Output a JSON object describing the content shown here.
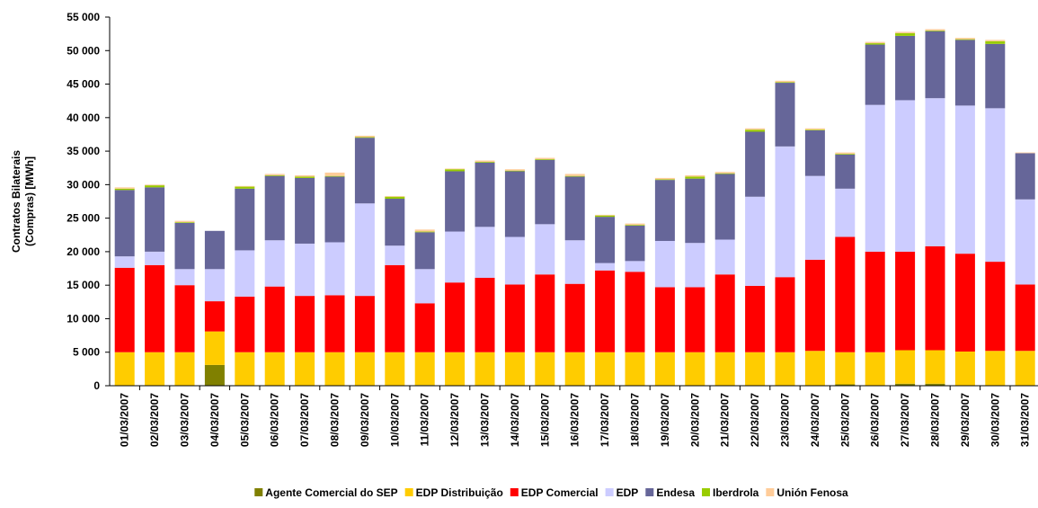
{
  "chart_data": {
    "type": "stacked_bar",
    "ylabel": [
      "Contratos Bilaterais",
      "(Compras) [MWh]"
    ],
    "categories": [
      "01/03/2007",
      "02/03/2007",
      "03/03/2007",
      "04/03/2007",
      "05/03/2007",
      "06/03/2007",
      "07/03/2007",
      "08/03/2007",
      "09/03/2007",
      "10/03/2007",
      "11/03/2007",
      "12/03/2007",
      "13/03/2007",
      "14/03/2007",
      "15/03/2007",
      "16/03/2007",
      "17/03/2007",
      "18/03/2007",
      "19/03/2007",
      "20/03/2007",
      "21/03/2007",
      "22/03/2007",
      "23/03/2007",
      "24/03/2007",
      "25/03/2007",
      "26/03/2007",
      "27/03/2007",
      "28/03/2007",
      "29/03/2007",
      "30/03/2007",
      "31/03/2007"
    ],
    "series": [
      {
        "name": "Agente Comercial do SEP",
        "color": "#808000",
        "values": [
          0,
          0,
          0,
          3100,
          0,
          0,
          0,
          0,
          0,
          0,
          100,
          0,
          0,
          0,
          0,
          0,
          0,
          0,
          0,
          0,
          0,
          0,
          0,
          0,
          200,
          0,
          300,
          300,
          0,
          0,
          0
        ]
      },
      {
        "name": "EDP Distribuição",
        "color": "#ffcc00",
        "values": [
          5000,
          5000,
          5000,
          5000,
          5000,
          5000,
          5000,
          5000,
          5000,
          5000,
          4900,
          5000,
          5000,
          5000,
          5000,
          5000,
          5000,
          5000,
          5000,
          5000,
          5000,
          5000,
          5000,
          5200,
          4800,
          5000,
          5000,
          5000,
          5100,
          5200,
          5200
        ]
      },
      {
        "name": "EDP Comercial",
        "color": "#ff0000",
        "values": [
          12600,
          13000,
          10000,
          4500,
          8300,
          9800,
          8400,
          8500,
          8400,
          13000,
          7300,
          10400,
          11100,
          10100,
          11600,
          10200,
          12200,
          12000,
          9700,
          9700,
          11600,
          9900,
          11200,
          13600,
          17200,
          15000,
          14700,
          15500,
          14600,
          13300,
          9900
        ]
      },
      {
        "name": "EDP",
        "color": "#ccccff",
        "values": [
          1700,
          2000,
          2400,
          4800,
          6900,
          6900,
          7800,
          7900,
          13800,
          2900,
          5100,
          7600,
          7600,
          7100,
          7500,
          6500,
          1100,
          1600,
          6900,
          6600,
          5200,
          13300,
          19500,
          12500,
          7200,
          21900,
          22600,
          22100,
          22100,
          22900,
          12700
        ]
      },
      {
        "name": "Endesa",
        "color": "#666699",
        "values": [
          9900,
          9600,
          6900,
          5700,
          9200,
          9600,
          9800,
          9800,
          9800,
          7000,
          5500,
          9000,
          9600,
          9800,
          9600,
          9500,
          6900,
          5300,
          9100,
          9600,
          9800,
          9700,
          9500,
          6800,
          5100,
          9000,
          9600,
          10000,
          9800,
          9600,
          6900
        ]
      },
      {
        "name": "Iberdrola",
        "color": "#99cc00",
        "values": [
          200,
          300,
          100,
          0,
          300,
          100,
          200,
          100,
          100,
          300,
          100,
          300,
          100,
          100,
          100,
          100,
          200,
          100,
          100,
          300,
          100,
          300,
          100,
          100,
          100,
          200,
          400,
          100,
          100,
          400,
          0
        ]
      },
      {
        "name": "Unión Fenosa",
        "color": "#ffcc99",
        "values": [
          200,
          100,
          200,
          0,
          100,
          200,
          200,
          500,
          200,
          100,
          300,
          100,
          200,
          200,
          200,
          300,
          100,
          200,
          200,
          200,
          200,
          200,
          200,
          200,
          200,
          200,
          200,
          200,
          200,
          200,
          100
        ]
      }
    ],
    "ylim": [
      0,
      55000
    ],
    "yticks": [
      0,
      {
        "value": 5000,
        "label": "5 000"
      },
      {
        "value": 10000,
        "label": "10 000"
      },
      {
        "value": 15000,
        "label": "15 000"
      },
      {
        "value": 20000,
        "label": "20 000"
      },
      {
        "value": 25000,
        "label": "25 000"
      },
      {
        "value": 30000,
        "label": "30 000"
      },
      {
        "value": 35000,
        "label": "35 000"
      },
      {
        "value": 40000,
        "label": "40 000"
      },
      {
        "value": 45000,
        "label": "45 000"
      },
      {
        "value": 50000,
        "label": "50 000"
      },
      {
        "value": 55000,
        "label": "55 000"
      }
    ],
    "grid": false,
    "legend": "bottom"
  }
}
